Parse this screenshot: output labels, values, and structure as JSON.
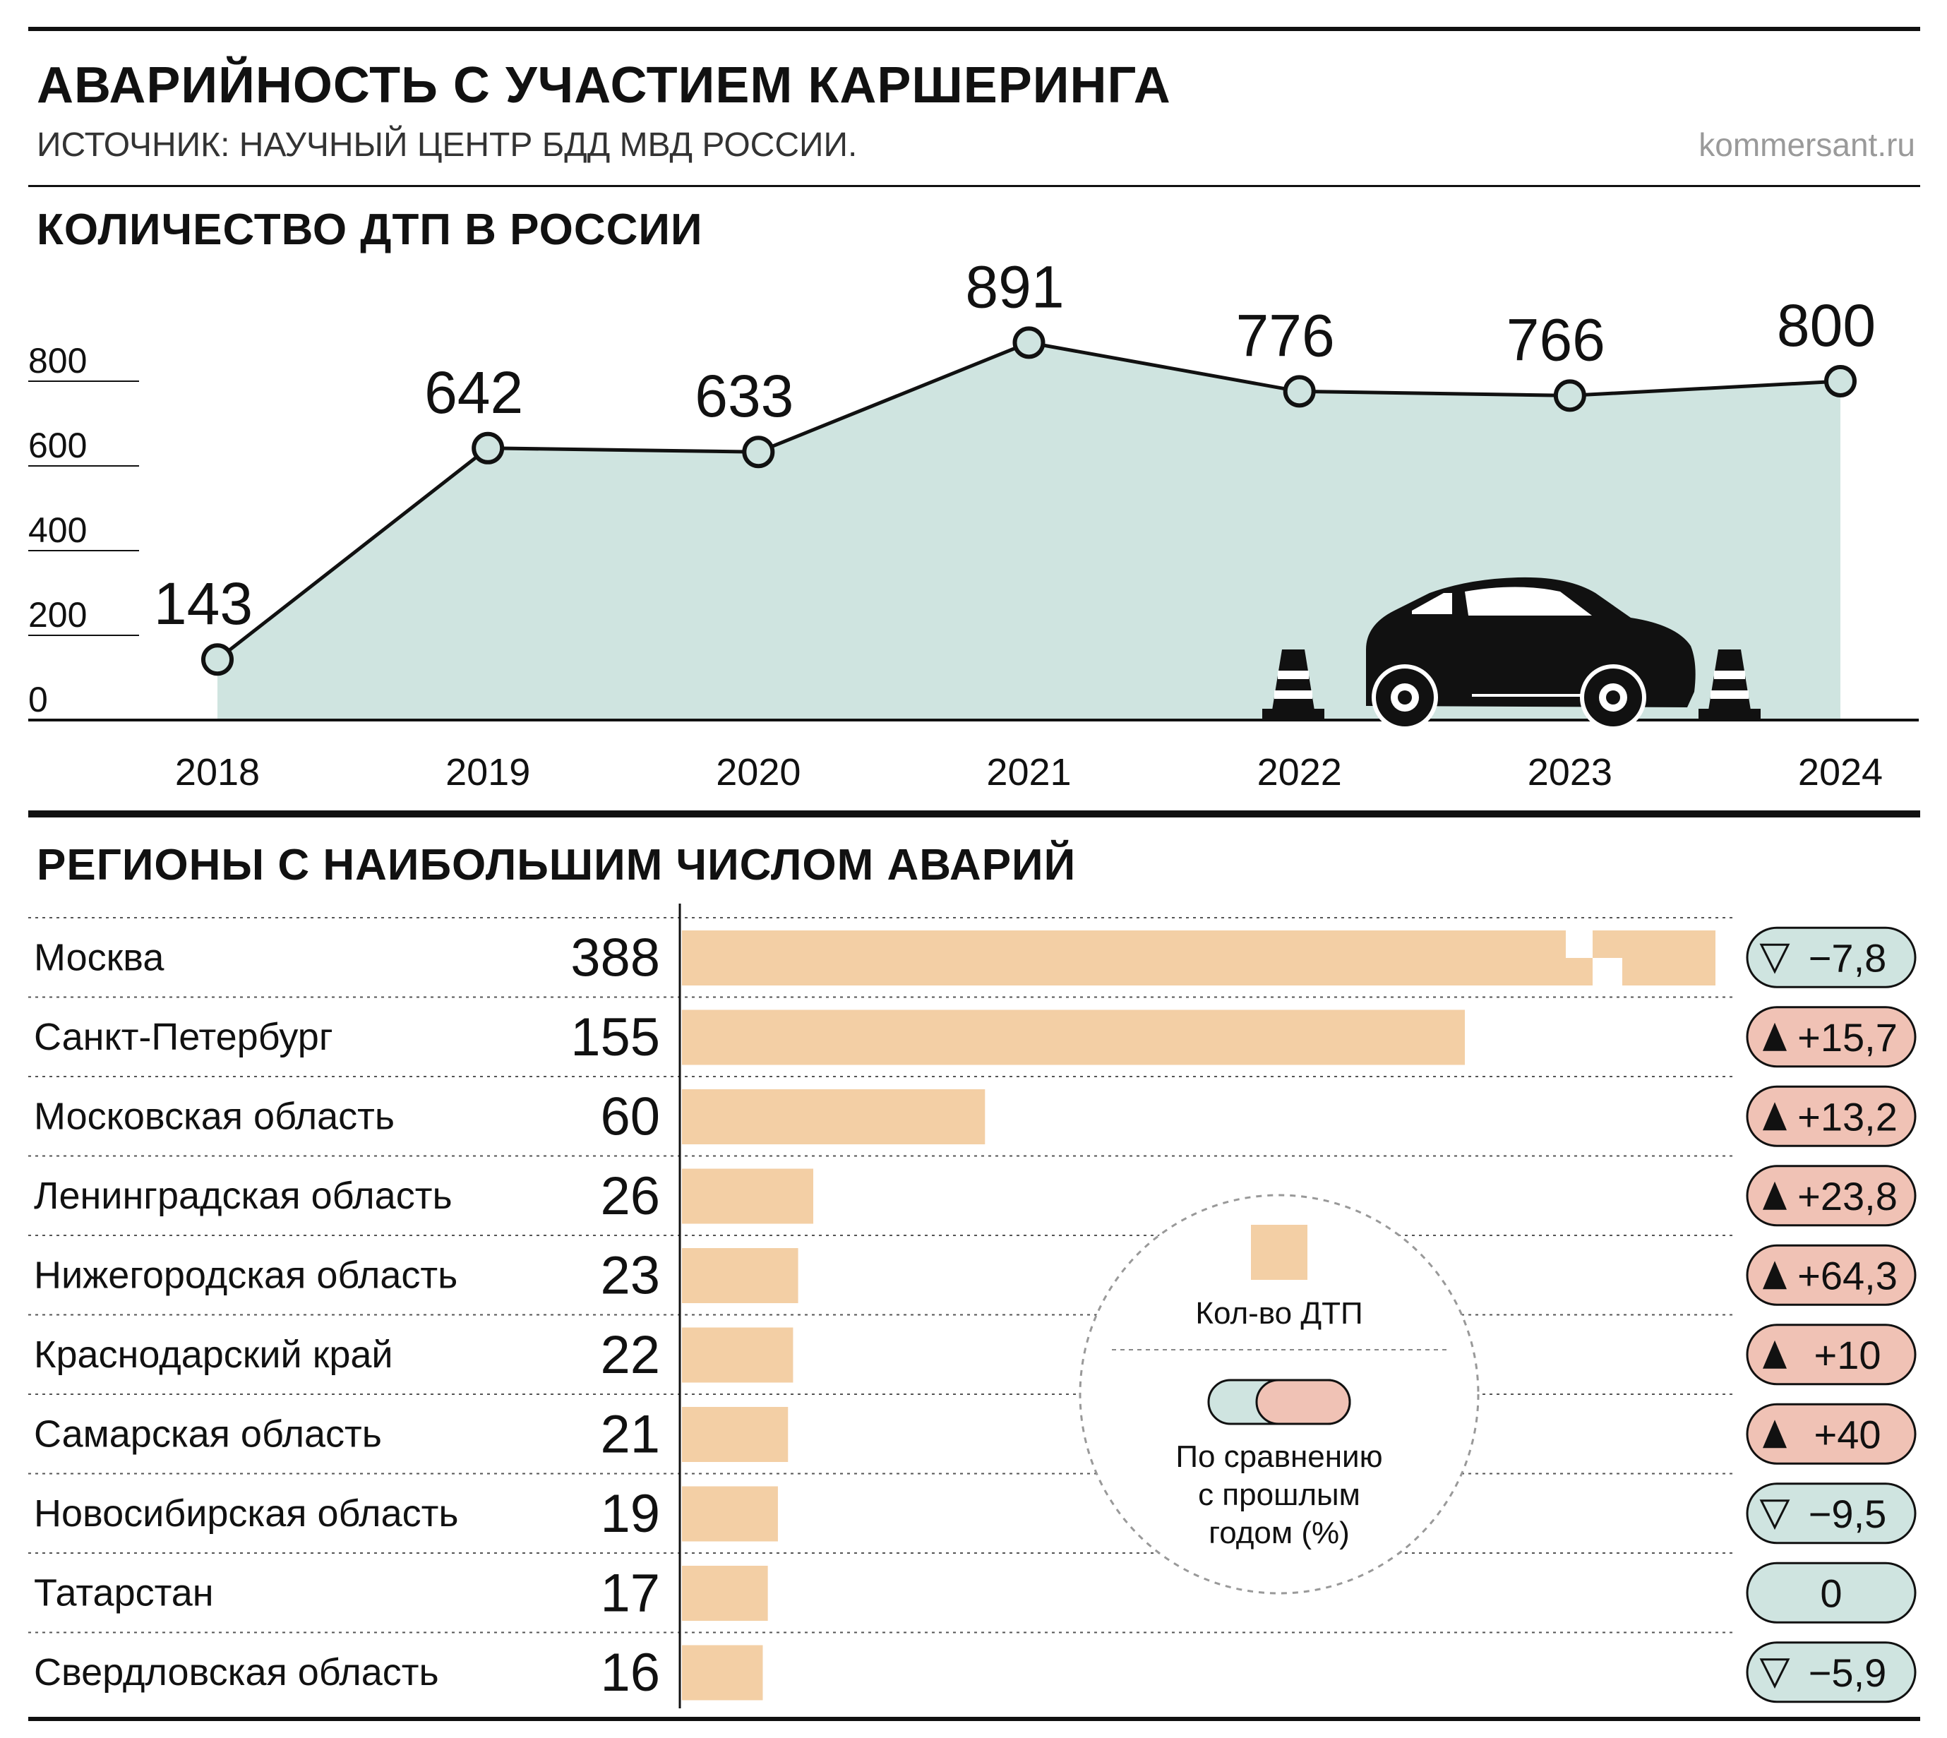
{
  "header": {
    "title": "АВАРИЙНОСТЬ С УЧАСТИЕМ КАРШЕРИНГА",
    "source": "ИСТОЧНИК: НАУЧНЫЙ ЦЕНТР БДД МВД РОССИИ.",
    "brand": "kommersant.ru"
  },
  "colors": {
    "area_fill": "#cfe4e0",
    "bar_fill": "#f3cfa5",
    "badge_down": "#cfe4e0",
    "badge_up": "#f0c2b5",
    "ink": "#111111"
  },
  "icons": [
    "car-icon",
    "traffic-cone-icon",
    "triangle-up-icon",
    "triangle-down-outline-icon"
  ],
  "chart_data": [
    {
      "type": "area",
      "title": "КОЛИЧЕСТВО ДТП В РОССИИ",
      "x": [
        "2018",
        "2019",
        "2020",
        "2021",
        "2022",
        "2023",
        "2024"
      ],
      "values": [
        143,
        642,
        633,
        891,
        776,
        766,
        800
      ],
      "data_labels": [
        "143",
        "642",
        "633",
        "891",
        "776",
        "766",
        "800"
      ],
      "yticks": [
        "0",
        "200",
        "400",
        "600",
        "800"
      ],
      "ylim": [
        0,
        800
      ],
      "grid": false
    },
    {
      "type": "bar",
      "orientation": "horizontal",
      "title": "РЕГИОНЫ С НАИБОЛЬШИМ ЧИСЛОМ АВАРИЙ",
      "categories": [
        "Москва",
        "Санкт-Петербург",
        "Московская область",
        "Ленинградская область",
        "Нижегородская область",
        "Краснодарский край",
        "Самарская область",
        "Новосибирская область",
        "Татарстан",
        "Свердловская область"
      ],
      "values": [
        388,
        155,
        60,
        26,
        23,
        22,
        21,
        19,
        17,
        16
      ],
      "value_labels": [
        "388",
        "155",
        "60",
        "26",
        "23",
        "22",
        "21",
        "19",
        "17",
        "16"
      ],
      "changes": [
        {
          "direction": "down",
          "text": "−7,8"
        },
        {
          "direction": "up",
          "text": "+15,7"
        },
        {
          "direction": "up",
          "text": "+13,2"
        },
        {
          "direction": "up",
          "text": "+23,8"
        },
        {
          "direction": "up",
          "text": "+64,3"
        },
        {
          "direction": "up",
          "text": "+10"
        },
        {
          "direction": "up",
          "text": "+40"
        },
        {
          "direction": "down",
          "text": "−9,5"
        },
        {
          "direction": "none",
          "text": "0"
        },
        {
          "direction": "down",
          "text": "−5,9"
        }
      ],
      "truncated_bars": [
        "Москва"
      ],
      "legend": {
        "bar_label": "Кол-во ДТП",
        "change_lines": [
          "По сравнению",
          "с прошлым",
          "годом (%)"
        ]
      }
    }
  ]
}
